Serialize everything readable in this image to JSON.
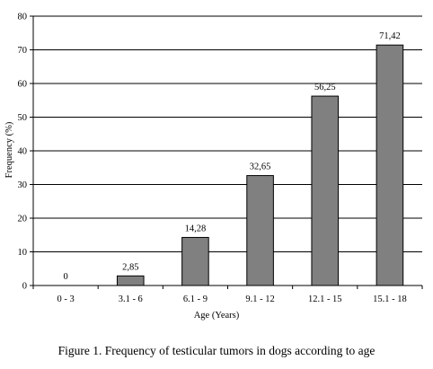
{
  "caption": "Figure 1. Frequency of testicular tumors in dogs according to age",
  "chart_data": {
    "type": "bar",
    "categories": [
      "0 - 3",
      "3.1 - 6",
      "6.1 - 9",
      "9.1 - 12",
      "12.1 - 15",
      "15.1 - 18"
    ],
    "values": [
      0,
      2.85,
      14.28,
      32.65,
      56.25,
      71.42
    ],
    "data_labels": [
      "0",
      "2,85",
      "14,28",
      "32,65",
      "56,25",
      "71,42"
    ],
    "xlabel": "Age (Years)",
    "ylabel": "Frequency (%)",
    "ylim": [
      0,
      80
    ],
    "yticks": [
      0,
      10,
      20,
      30,
      40,
      50,
      60,
      70,
      80
    ],
    "ytick_labels": [
      "0",
      "10",
      "20",
      "30",
      "40",
      "50",
      "60",
      "70",
      "80"
    ],
    "grid": true,
    "legend": "none",
    "colors": {
      "bar_fill": "#808080",
      "bar_stroke": "#000000",
      "grid": "#000000",
      "axis": "#000000"
    }
  }
}
